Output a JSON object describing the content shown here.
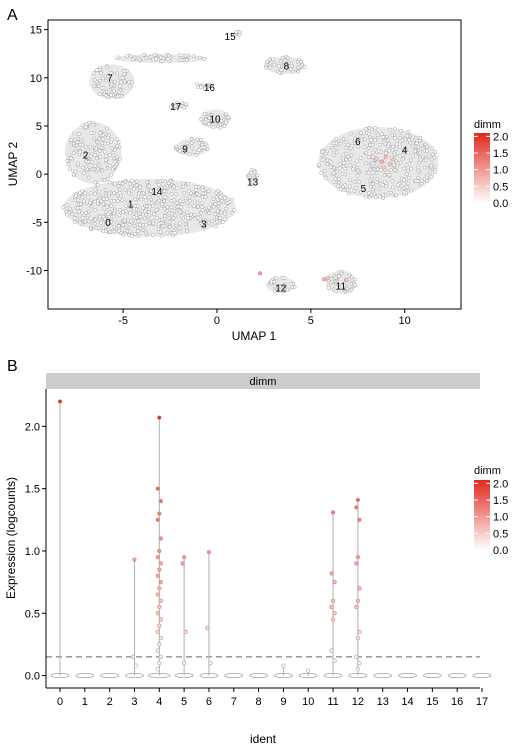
{
  "panels": {
    "a": {
      "letter": "A"
    },
    "b": {
      "letter": "B"
    }
  },
  "chart_data": [
    {
      "type": "scatter",
      "xlabel": "UMAP 1",
      "ylabel": "UMAP 2",
      "xlim": [
        -9,
        13
      ],
      "ylim": [
        -14,
        16
      ],
      "xticks": [
        "-5",
        "0",
        "5",
        "10"
      ],
      "yticks": [
        "-10",
        "-5",
        "0",
        "5",
        "10",
        "15"
      ],
      "grid": false,
      "legend": {
        "title": "dimm",
        "placement": "right",
        "ticks": [
          "2.0",
          "1.5",
          "1.0",
          "0.5",
          "0.0"
        ],
        "range": [
          0,
          2.1
        ],
        "low_color": "#ffffff",
        "high_color": "#e0281e"
      },
      "cluster_labels": [
        {
          "label": "0",
          "x": -5.8,
          "y": -5.0
        },
        {
          "label": "1",
          "x": -4.6,
          "y": -3.1
        },
        {
          "label": "2",
          "x": -7.0,
          "y": 2.0
        },
        {
          "label": "3",
          "x": -0.7,
          "y": -5.2
        },
        {
          "label": "4",
          "x": 10.0,
          "y": 2.5
        },
        {
          "label": "5",
          "x": 7.8,
          "y": -1.5
        },
        {
          "label": "6",
          "x": 7.5,
          "y": 3.4
        },
        {
          "label": "7",
          "x": -5.7,
          "y": 10.0
        },
        {
          "label": "8",
          "x": 3.7,
          "y": 11.2
        },
        {
          "label": "9",
          "x": -1.7,
          "y": 2.6
        },
        {
          "label": "10",
          "x": -0.1,
          "y": 5.7
        },
        {
          "label": "11",
          "x": 6.6,
          "y": -11.6
        },
        {
          "label": "12",
          "x": 3.4,
          "y": -11.8
        },
        {
          "label": "13",
          "x": 1.9,
          "y": -0.8
        },
        {
          "label": "14",
          "x": -3.2,
          "y": -1.8
        },
        {
          "label": "15",
          "x": 0.7,
          "y": 14.3
        },
        {
          "label": "16",
          "x": -0.4,
          "y": 9.0
        },
        {
          "label": "17",
          "x": -2.2,
          "y": 7.0
        }
      ],
      "cluster_regions": [
        {
          "label": "0-1-3-14",
          "cx": -3.6,
          "cy": -3.5,
          "rx": 4.6,
          "ry": 3.0,
          "points": 520
        },
        {
          "label": "2",
          "cx": -6.6,
          "cy": 2.2,
          "rx": 1.5,
          "ry": 3.2,
          "points": 150
        },
        {
          "label": "7",
          "cx": -5.6,
          "cy": 9.6,
          "rx": 1.2,
          "ry": 1.8,
          "points": 70
        },
        {
          "label": "7-arm",
          "cx": -3.0,
          "cy": 12.0,
          "rx": 2.5,
          "ry": 0.45,
          "points": 45
        },
        {
          "label": "4-5-6",
          "cx": 8.6,
          "cy": 1.2,
          "rx": 3.2,
          "ry": 3.7,
          "points": 360
        },
        {
          "label": "8",
          "cx": 3.6,
          "cy": 11.3,
          "rx": 1.1,
          "ry": 0.9,
          "points": 45
        },
        {
          "label": "9",
          "cx": -1.3,
          "cy": 2.8,
          "rx": 0.9,
          "ry": 0.9,
          "points": 35
        },
        {
          "label": "10",
          "cx": -0.1,
          "cy": 5.7,
          "rx": 0.8,
          "ry": 1.0,
          "points": 40
        },
        {
          "label": "11",
          "cx": 6.6,
          "cy": -11.2,
          "rx": 0.8,
          "ry": 1.2,
          "points": 40
        },
        {
          "label": "12",
          "cx": 3.4,
          "cy": -11.5,
          "rx": 0.8,
          "ry": 0.8,
          "points": 30
        },
        {
          "label": "13",
          "cx": 1.9,
          "cy": -0.3,
          "rx": 0.3,
          "ry": 0.8,
          "points": 12
        },
        {
          "label": "15",
          "cx": 1.0,
          "cy": 14.6,
          "rx": 0.3,
          "ry": 0.2,
          "points": 6
        },
        {
          "label": "16",
          "cx": -0.7,
          "cy": 9.2,
          "rx": 0.4,
          "ry": 0.3,
          "points": 12
        },
        {
          "label": "17",
          "cx": -2.0,
          "cy": 7.1,
          "rx": 0.5,
          "ry": 0.3,
          "points": 14
        }
      ],
      "expressing_points": [
        {
          "x": 9.0,
          "y": 1.8,
          "v": 0.6
        },
        {
          "x": 8.8,
          "y": 1.3,
          "v": 0.7
        },
        {
          "x": 9.2,
          "y": 1.0,
          "v": 0.5
        },
        {
          "x": 8.5,
          "y": 1.6,
          "v": 0.4
        },
        {
          "x": 9.4,
          "y": 1.5,
          "v": 0.5
        },
        {
          "x": 8.9,
          "y": 0.7,
          "v": 0.35
        },
        {
          "x": 2.3,
          "y": -10.3,
          "v": 0.9
        },
        {
          "x": 5.7,
          "y": -10.9,
          "v": 0.7
        },
        {
          "x": 5.9,
          "y": -10.8,
          "v": 0.5
        },
        {
          "x": 6.9,
          "y": -11.0,
          "v": 0.5
        }
      ]
    },
    {
      "type": "scatter",
      "subtype": "violin-dot",
      "strip_label": "dimm",
      "xlabel": "ident",
      "ylabel": "Expression (logcounts)",
      "categories": [
        "0",
        "1",
        "2",
        "3",
        "4",
        "5",
        "6",
        "7",
        "8",
        "9",
        "10",
        "11",
        "12",
        "13",
        "14",
        "15",
        "16",
        "17"
      ],
      "ylim": [
        -0.1,
        2.3
      ],
      "yticks": [
        "0.0",
        "0.5",
        "1.0",
        "1.5",
        "2.0"
      ],
      "reference_line": 0.15,
      "grid": false,
      "max_values": [
        2.2,
        0.0,
        0.0,
        0.93,
        2.07,
        0.95,
        0.99,
        0.0,
        0.0,
        0.08,
        0.04,
        1.31,
        1.41,
        0.0,
        0.0,
        0.0,
        0.0,
        0.0
      ],
      "expressing_values": [
        [
          2.2
        ],
        [],
        [],
        [
          0.93,
          0.15,
          0.08
        ],
        [
          2.07,
          1.5,
          1.4,
          1.3,
          1.25,
          1.1,
          1.0,
          0.95,
          0.9,
          0.85,
          0.8,
          0.75,
          0.7,
          0.65,
          0.6,
          0.55,
          0.5,
          0.45,
          0.4,
          0.35,
          0.3,
          0.25,
          0.2,
          0.15,
          0.1,
          0.05
        ],
        [
          0.95,
          0.9,
          0.35,
          0.1
        ],
        [
          0.99,
          0.38,
          0.1
        ],
        [],
        [],
        [
          0.08
        ],
        [
          0.04
        ],
        [
          1.31,
          0.82,
          0.75,
          0.6,
          0.55,
          0.5,
          0.45,
          0.2,
          0.12
        ],
        [
          1.41,
          1.35,
          1.25,
          0.95,
          0.9,
          0.7,
          0.6,
          0.55,
          0.35,
          0.3,
          0.15,
          0.1,
          0.05
        ],
        [],
        [],
        [],
        [],
        []
      ],
      "legend": {
        "title": "dimm",
        "placement": "right",
        "ticks": [
          "2.0",
          "1.5",
          "1.0",
          "0.5",
          "0.0"
        ],
        "range": [
          0,
          2.1
        ],
        "low_color": "#ffffff",
        "high_color": "#e0281e"
      }
    }
  ],
  "colors": {
    "point_stroke": "#9a9a9a",
    "cloud_fill": "#e8e8e8",
    "strip_bg": "#cccccc",
    "ref_line": "#666666"
  }
}
